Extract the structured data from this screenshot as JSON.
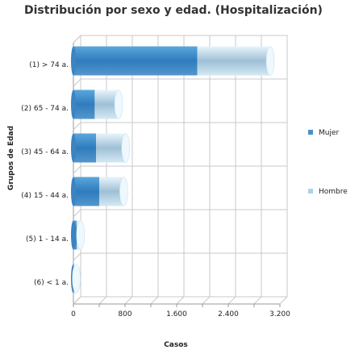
{
  "chart_data": {
    "type": "bar",
    "orientation": "horizontal",
    "stacked": true,
    "style": "3d-cylinder",
    "title": "Distribución por sexo y edad. (Hospitalización)",
    "xlabel": "Casos",
    "ylabel": "Grupos de Edad",
    "categories": [
      "(1) > 74 a.",
      "(2) 65 - 74 a.",
      "(3) 45 - 64 a.",
      "(4) 15 - 44 a.",
      "(5) 1 - 14 a.",
      "(6) < 1 a."
    ],
    "series": [
      {
        "name": "Mujer",
        "color": "#4a90c8",
        "values": [
          1920,
          330,
          350,
          400,
          50,
          5
        ]
      },
      {
        "name": "Hombre",
        "color": "#a9d3ee",
        "values": [
          1130,
          370,
          460,
          380,
          60,
          40
        ]
      }
    ],
    "xlim": [
      0,
      3200
    ],
    "xticks": [
      0,
      400,
      800,
      1200,
      1600,
      2000,
      2400,
      2800,
      3200
    ],
    "xtick_labels": [
      "0",
      "",
      "800",
      "",
      "1.600",
      "",
      "2.400",
      "",
      "3.200"
    ],
    "grid": true,
    "legend": "right"
  }
}
